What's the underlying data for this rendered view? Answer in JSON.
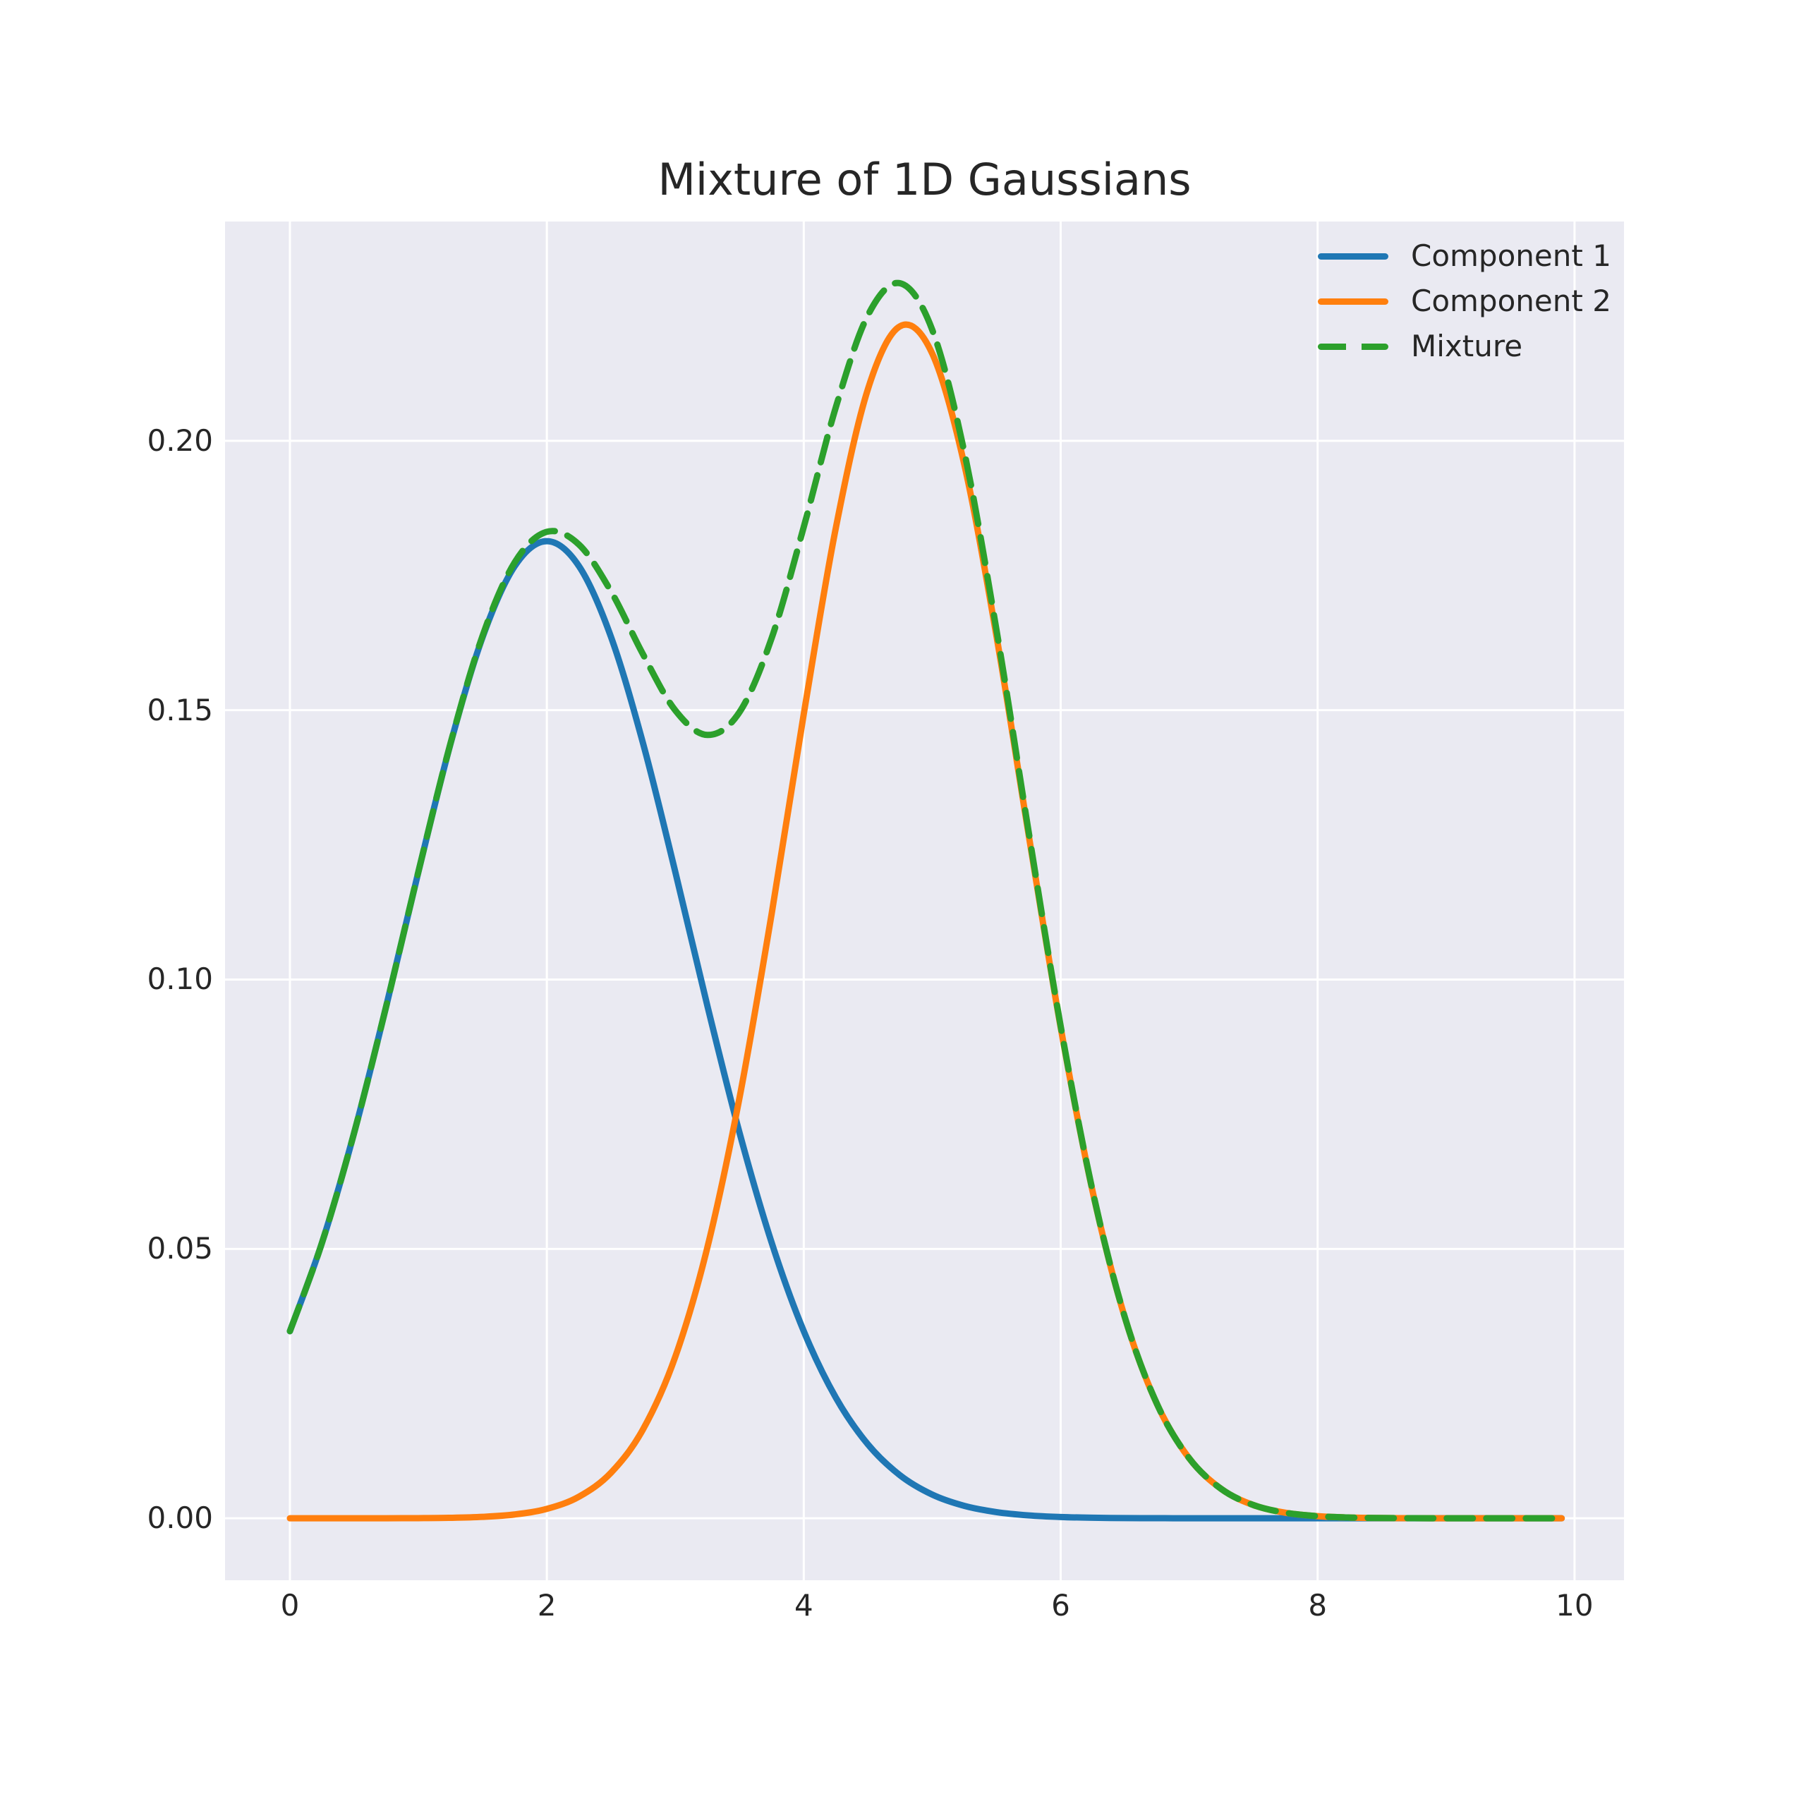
{
  "title": "Mixture of 1D Gaussians",
  "colors": {
    "figure_background": "#ffffff",
    "plot_background": "#eaeaf2",
    "gridline": "#ffffff",
    "text": "#262626",
    "component1": "#1f77b4",
    "component2": "#ff7f0e",
    "mixture": "#2ca02c"
  },
  "legend": {
    "entries": [
      {
        "label": "Component 1",
        "color": "#1f77b4",
        "line_style": "solid"
      },
      {
        "label": "Component 2",
        "color": "#ff7f0e",
        "line_style": "solid"
      },
      {
        "label": "Mixture",
        "color": "#2ca02c",
        "line_style": "dashed"
      }
    ]
  },
  "chart_data": {
    "type": "line",
    "title": "Mixture of 1D Gaussians",
    "xlabel": "",
    "ylabel": "",
    "grid": true,
    "legend_position": "upper right",
    "xlim": [
      -0.505,
      10.385
    ],
    "ylim": [
      -0.0115,
      0.2407
    ],
    "xticks": [
      0,
      2,
      4,
      6,
      8,
      10
    ],
    "xtick_labels": [
      "0",
      "2",
      "4",
      "6",
      "8",
      "10"
    ],
    "yticks": [
      0.0,
      0.05,
      0.1,
      0.15,
      0.2
    ],
    "ytick_labels": [
      "0.00",
      "0.05",
      "0.10",
      "0.15",
      "0.20"
    ],
    "x": [
      0,
      0.25,
      0.5,
      0.75,
      1,
      1.25,
      1.5,
      1.75,
      2,
      2.25,
      2.5,
      2.75,
      3,
      3.25,
      3.5,
      3.75,
      4,
      4.25,
      4.5,
      4.75,
      5,
      5.25,
      5.5,
      5.75,
      6,
      6.25,
      6.5,
      6.75,
      7,
      7.25,
      7.5,
      7.75,
      8,
      8.25,
      8.5,
      8.75,
      9,
      9.25,
      9.5,
      9.75,
      9.9
    ],
    "series": [
      {
        "name": "Component 1",
        "color": "#1f77b4",
        "dash": false,
        "values": [
          0.03473,
          0.05117,
          0.07156,
          0.09509,
          0.11997,
          0.14375,
          0.16356,
          0.17673,
          0.18136,
          0.17673,
          0.16356,
          0.14375,
          0.11997,
          0.09509,
          0.07156,
          0.05117,
          0.03473,
          0.02238,
          0.0137,
          0.00797,
          0.0044,
          0.00231,
          0.00115,
          0.00054,
          0.00024,
          0.0001,
          4e-05,
          2e-05,
          1e-05,
          0,
          0,
          0,
          0,
          0,
          0,
          0,
          0,
          0,
          0,
          0,
          0
        ]
      },
      {
        "name": "Component 2",
        "color": "#ff7f0e",
        "dash": false,
        "values": [
          0,
          0,
          0,
          1e-05,
          3e-05,
          9e-05,
          0.00027,
          0.00071,
          0.00175,
          0.00401,
          0.00847,
          0.01656,
          0.02999,
          0.05031,
          0.07808,
          0.1122,
          0.14928,
          0.18387,
          0.20964,
          0.22127,
          0.2162,
          0.19557,
          0.16377,
          0.12696,
          0.0911,
          0.06052,
          0.03723,
          0.02118,
          0.01115,
          0.00545,
          0.00246,
          0.00103,
          0.0004,
          0.00014,
          5e-05,
          2e-05,
          1e-05,
          0,
          0,
          0,
          0
        ]
      },
      {
        "name": "Mixture",
        "color": "#2ca02c",
        "dash": true,
        "values": [
          0.03473,
          0.05117,
          0.07156,
          0.0951,
          0.12,
          0.14384,
          0.16383,
          0.17744,
          0.18311,
          0.18074,
          0.17203,
          0.16031,
          0.14996,
          0.1454,
          0.14964,
          0.16337,
          0.18401,
          0.20625,
          0.22334,
          0.22924,
          0.2206,
          0.19788,
          0.16492,
          0.1275,
          0.09134,
          0.06062,
          0.03727,
          0.0212,
          0.01116,
          0.00545,
          0.00246,
          0.00103,
          0.0004,
          0.00014,
          5e-05,
          2e-05,
          1e-05,
          0,
          0,
          0,
          0
        ]
      }
    ]
  }
}
